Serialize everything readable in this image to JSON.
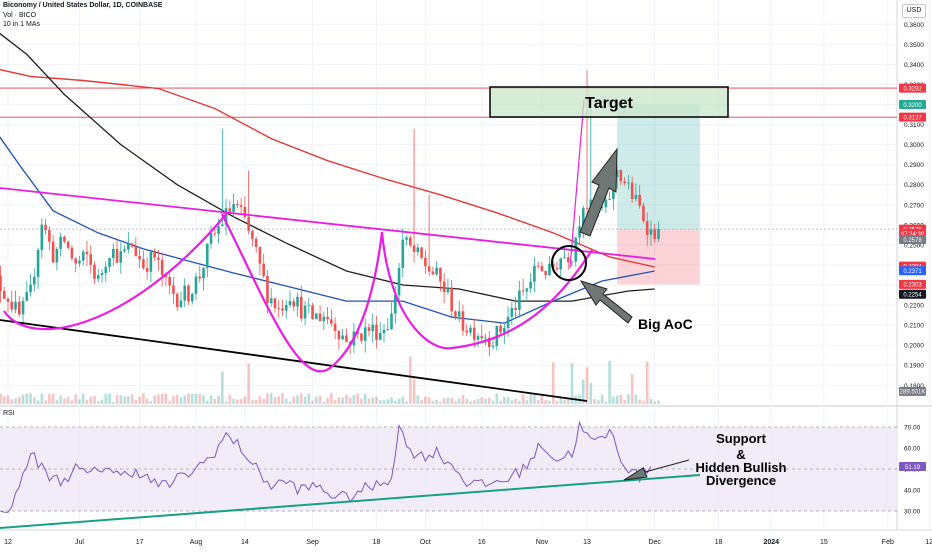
{
  "header": {
    "title": "Biconomy / United States Dollar, 1D, COINBASE",
    "vol_label": "Vol · BICO",
    "ma_label": "10 in 1 MAs",
    "currency": "USD"
  },
  "price_axis": {
    "ticks": [
      "0.3600",
      "0.3500",
      "0.3400",
      "0.3300",
      "0.3200",
      "0.3100",
      "0.3000",
      "0.2900",
      "0.2800",
      "0.2700",
      "0.2600",
      "0.2500",
      "0.2400",
      "0.2300",
      "0.2200",
      "0.2100",
      "0.2000",
      "0.1900",
      "0.1800"
    ],
    "tick_values": [
      0.36,
      0.35,
      0.34,
      0.33,
      0.32,
      0.31,
      0.3,
      0.29,
      0.28,
      0.27,
      0.26,
      0.25,
      0.24,
      0.23,
      0.22,
      0.21,
      0.2,
      0.19,
      0.18
    ],
    "badges": [
      {
        "text": "0.3282",
        "value": 0.3282,
        "color": "#f23645"
      },
      {
        "text": "0.3200",
        "value": 0.32,
        "color": "#22ab94"
      },
      {
        "text": "0.3137",
        "value": 0.3137,
        "color": "#f23645"
      },
      {
        "text": "0.2579",
        "value": 0.2579,
        "color": "#f23645"
      },
      {
        "text": "07:24:30",
        "value": 0.2557,
        "color": "#f23645"
      },
      {
        "text": "0.2578",
        "value": 0.2527,
        "color": "#787b86"
      },
      {
        "text": "0.2394",
        "value": 0.2394,
        "color": "#f23645"
      },
      {
        "text": "0.2371",
        "value": 0.2371,
        "color": "#2962ff"
      },
      {
        "text": "0.2303",
        "value": 0.2303,
        "color": "#f23645"
      },
      {
        "text": "0.2254",
        "value": 0.2254,
        "color": "#131722"
      },
      {
        "text": "289.501K",
        "value": 0.177,
        "color": "#787b86"
      }
    ]
  },
  "rsi_axis": {
    "ticks": [
      "70.00",
      "60.00",
      "50.00",
      "40.00",
      "30.00"
    ],
    "tick_values": [
      70,
      60,
      50,
      40,
      30
    ],
    "badge": {
      "text": "51.19",
      "value": 51.19,
      "color": "#7e57c2"
    }
  },
  "rsi_label": "RSI",
  "time_axis": {
    "labels": [
      "12",
      "Jul",
      "17",
      "Aug",
      "14",
      "Sep",
      "18",
      "Oct",
      "16",
      "Nov",
      "13",
      "Dec",
      "18",
      "2024",
      "15",
      "Feb",
      "12"
    ],
    "dates": [
      "2023-06-12",
      "2023-07-01",
      "2023-07-17",
      "2023-08-01",
      "2023-08-14",
      "2023-09-01",
      "2023-09-18",
      "2023-10-01",
      "2023-10-16",
      "2023-11-01",
      "2023-11-13",
      "2023-12-01",
      "2023-12-18",
      "2024-01-01",
      "2024-01-15",
      "2024-02-01",
      "2024-02-12"
    ]
  },
  "annotations": {
    "target": "Target",
    "big_aoc": "Big AoC",
    "support_line1": "Support",
    "support_line2": "&",
    "support_line3": "Hidden Bullish",
    "support_line4": "Divergence"
  },
  "colors": {
    "up": "#26a69a",
    "down": "#ef5350",
    "ma_red": "#e53935",
    "ma_black": "#212121",
    "ma_blue": "#1e53b5",
    "trend_magenta": "#e91ee3",
    "rsi_line": "#7e57c2",
    "rsi_band": "#ede7f6",
    "support_green": "#16a085"
  },
  "chart_data": {
    "type": "candlestick",
    "title": "Biconomy / United States Dollar, 1D, COINBASE",
    "y_scale": "linear",
    "ylim": [
      0.176,
      0.365
    ],
    "x_range": [
      "2023-06-05",
      "2024-02-20"
    ],
    "horizontal_levels": [
      0.3282,
      0.3137,
      0.2579
    ],
    "series_summary": {
      "start": {
        "date": "2023-06-05",
        "close": 0.24
      },
      "swing_high_1": {
        "date": "2023-06-24",
        "high": 0.276
      },
      "low_1": {
        "date": "2023-06-27",
        "low": 0.211
      },
      "high_2": {
        "date": "2023-08-11",
        "high": 0.308
      },
      "high_3": {
        "date": "2023-08-18",
        "high": 0.287
      },
      "low_2": {
        "date": "2023-09-13",
        "low": 0.193
      },
      "spike_1": {
        "date": "2023-09-27",
        "high": 0.308
      },
      "low_3": {
        "date": "2023-10-19",
        "low": 0.198
      },
      "spike_2": {
        "date": "2023-11-13",
        "high": 0.337
      },
      "last": {
        "date": "2023-11-20",
        "close": 0.2579
      }
    },
    "position": {
      "entry": 0.2579,
      "target": 0.32,
      "stop": 0.2303
    },
    "rsi": {
      "ylim": [
        20,
        75
      ],
      "last": 51.19
    }
  }
}
